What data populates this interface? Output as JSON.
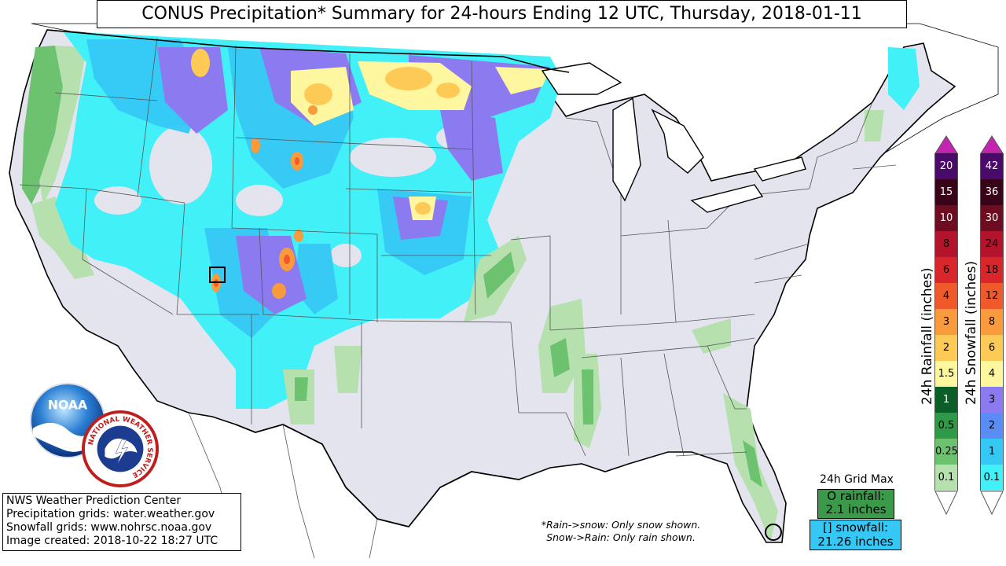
{
  "title": "CONUS Precipitation* Summary for 24-hours Ending 12 UTC, Thursday, 2018-01-11",
  "credits": [
    "NWS Weather Prediction Center",
    "Precipitation grids: water.weather.gov",
    "Snowfall grids: www.nohrsc.noaa.gov",
    "Image created: 2018-10-22 18:27 UTC"
  ],
  "notes": [
    "*Rain->snow: Only snow shown.",
    "Snow->Rain: Only rain shown."
  ],
  "grid_max": {
    "label": "24h Grid Max",
    "rain_line1": "O rainfall:",
    "rain_line2": "2.1 inches",
    "snow_line1": "[] snowfall:",
    "snow_line2": "21.26 inches"
  },
  "rain_scale": {
    "title": "24h Rainfall (inches)",
    "levels": [
      "20",
      "15",
      "10",
      "8",
      "6",
      "4",
      "3",
      "2",
      "1.5",
      "1",
      "0.5",
      "0.25",
      "0.1"
    ],
    "colors": [
      "#4a0a6a",
      "#3a0418",
      "#6e0c22",
      "#b3142b",
      "#d8262b",
      "#f05a2a",
      "#f99a3c",
      "#fdca56",
      "#fff7a0",
      "#0b5e26",
      "#2e9a48",
      "#6dc270",
      "#b6e0ae"
    ],
    "cap_color": "#c424b0"
  },
  "snow_scale": {
    "title": "24h Snowfall (inches)",
    "levels": [
      "42",
      "36",
      "30",
      "24",
      "18",
      "12",
      "8",
      "6",
      "4",
      "3",
      "2",
      "1",
      "0.1"
    ],
    "colors": [
      "#4a0a6a",
      "#3a0418",
      "#6e0c22",
      "#b3142b",
      "#d8262b",
      "#f05a2a",
      "#f99a3c",
      "#fdca56",
      "#fff7a0",
      "#8c7af0",
      "#5a8cf5",
      "#36c8f5",
      "#42f0f8"
    ],
    "cap_color": "#c424b0"
  },
  "logos": {
    "noaa_text": "NOAA",
    "nws_text": "NATIONAL WEATHER SERVICE"
  },
  "colors": {
    "light_snow": "#42f0f8",
    "snow_1": "#36c8f5",
    "snow_2": "#5a8cf5",
    "snow_3": "#8c7af0",
    "snow_4": "#fff7a0",
    "snow_6": "#fdca56",
    "snow_8": "#f99a3c",
    "trace": "#e4e4ee",
    "rain_light": "#b6e0ae",
    "rain_med": "#6dc270"
  }
}
